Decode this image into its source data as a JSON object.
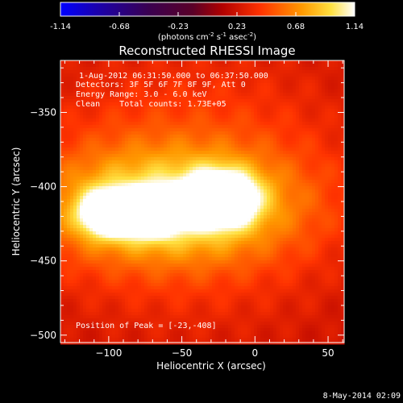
{
  "chart_data": {
    "type": "heatmap",
    "title": "Reconstructed RHESSI Image",
    "xlabel": "Heliocentric X (arcsec)",
    "ylabel": "Heliocentric Y (arcsec)",
    "xlim": [
      -133,
      61
    ],
    "ylim": [
      -505,
      -315
    ],
    "xticks": [
      -100,
      -50,
      0,
      50
    ],
    "yticks": [
      -350,
      -400,
      -450,
      -500
    ],
    "colorbar": {
      "ticks": [
        "-1.14",
        "-0.68",
        "-0.23",
        "0.23",
        "0.68",
        "1.14"
      ],
      "range": [
        -1.14,
        1.14
      ],
      "unit_label": "(photons cm",
      "unit_exp1": "-2",
      "unit_mid": " s",
      "unit_exp2": "-1",
      "unit_mid2": " asec",
      "unit_exp3": "-2",
      "unit_end": ")"
    },
    "annotations": [
      "1-Aug-2012 06:31:50.000 to 06:37:50.000",
      "Detectors: 3F 5F 6F 7F 8F 9F, Att 0",
      "Energy Range: 3.0 - 6.0 keV",
      "Clean    Total counts: 1.73E+05"
    ],
    "peak_label": "Position of Peak = [-23,-408]",
    "sources": [
      {
        "x": -100,
        "y": -418,
        "sx": 13,
        "sy": 10,
        "amp": 1.05
      },
      {
        "x": -70,
        "y": -418,
        "sx": 13,
        "sy": 10,
        "amp": 0.95
      },
      {
        "x": -23,
        "y": -408,
        "sx": 16,
        "sy": 12,
        "amp": 1.14
      },
      {
        "x": -60,
        "y": -413,
        "sx": 60,
        "sy": 26,
        "amp": 0.62
      },
      {
        "x": -45,
        "y": -400,
        "sx": 90,
        "sy": 70,
        "amp": 0.32
      }
    ],
    "footer_date": "8-May-2014 02:09"
  }
}
